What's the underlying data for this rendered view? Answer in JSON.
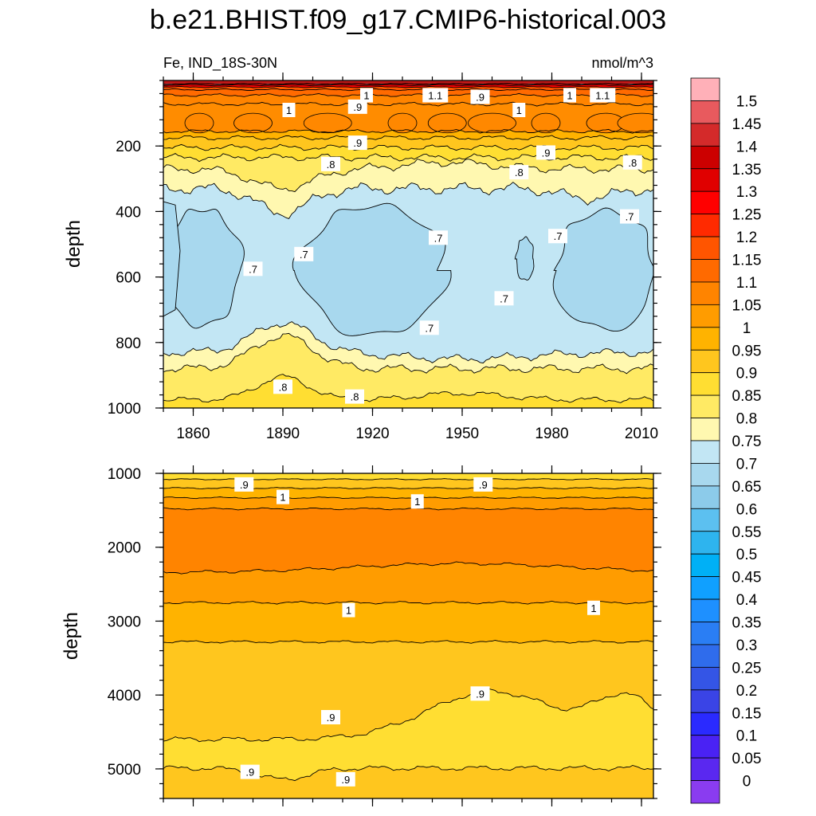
{
  "title": "b.e21.BHIST.f09_g17.CMIP6-historical.003",
  "left_subtitle": "Fe, IND_18S-30N",
  "right_subtitle": "nmol/m^3",
  "chart_data": [
    {
      "type": "heatmap",
      "panel": "upper",
      "ylabel": "depth",
      "xlim": [
        1850,
        2014
      ],
      "ylim": [
        0,
        1000
      ],
      "y_inverted": true,
      "x_ticks": [
        1860,
        1890,
        1920,
        1950,
        1980,
        2010
      ],
      "y_ticks": [
        200,
        400,
        600,
        800,
        1000
      ],
      "contour_labels": [
        {
          "text": "1",
          "x": 1892,
          "y": 90
        },
        {
          "text": ".9",
          "x": 1915,
          "y": 80
        },
        {
          "text": "1",
          "x": 1918,
          "y": 45
        },
        {
          "text": "1.1",
          "x": 1941,
          "y": 45
        },
        {
          "text": ".9",
          "x": 1956,
          "y": 50
        },
        {
          "text": "1",
          "x": 1969,
          "y": 90
        },
        {
          "text": "1",
          "x": 1986,
          "y": 45
        },
        {
          "text": "1.1",
          "x": 1997,
          "y": 45
        },
        {
          "text": ".9",
          "x": 1915,
          "y": 190
        },
        {
          "text": ".8",
          "x": 1906,
          "y": 255
        },
        {
          "text": ".9",
          "x": 1978,
          "y": 220
        },
        {
          "text": ".8",
          "x": 1969,
          "y": 280
        },
        {
          "text": ".8",
          "x": 2007,
          "y": 250
        },
        {
          "text": ".7",
          "x": 2006,
          "y": 415
        },
        {
          "text": ".7",
          "x": 1942,
          "y": 480
        },
        {
          "text": ".7",
          "x": 1982,
          "y": 475
        },
        {
          "text": ".7",
          "x": 1880,
          "y": 575
        },
        {
          "text": ".7",
          "x": 1897,
          "y": 530
        },
        {
          "text": ".7",
          "x": 1964,
          "y": 665
        },
        {
          "text": ".7",
          "x": 1939,
          "y": 755
        },
        {
          "text": ".8",
          "x": 1890,
          "y": 935
        },
        {
          "text": ".8",
          "x": 1914,
          "y": 965
        }
      ]
    },
    {
      "type": "heatmap",
      "panel": "lower",
      "ylabel": "depth",
      "xlim": [
        1850,
        2014
      ],
      "ylim": [
        1000,
        5400
      ],
      "y_inverted": true,
      "y_ticks": [
        1000,
        2000,
        3000,
        4000,
        5000
      ],
      "contour_labels": [
        {
          "text": ".9",
          "x": 1877,
          "y": 1150
        },
        {
          "text": ".9",
          "x": 1957,
          "y": 1150
        },
        {
          "text": "1",
          "x": 1890,
          "y": 1320
        },
        {
          "text": "1",
          "x": 1935,
          "y": 1380
        },
        {
          "text": "1",
          "x": 1912,
          "y": 2850
        },
        {
          "text": "1",
          "x": 1994,
          "y": 2820
        },
        {
          "text": ".9",
          "x": 1956,
          "y": 3980
        },
        {
          "text": ".9",
          "x": 1906,
          "y": 4300
        },
        {
          "text": ".9",
          "x": 1879,
          "y": 5040
        },
        {
          "text": ".9",
          "x": 1911,
          "y": 5140
        }
      ]
    }
  ],
  "colorbar": {
    "levels": [
      "1.5",
      "1.45",
      "1.4",
      "1.35",
      "1.3",
      "1.25",
      "1.2",
      "1.15",
      "1.1",
      "1.05",
      "1",
      "0.95",
      "0.9",
      "0.85",
      "0.8",
      "0.75",
      "0.7",
      "0.65",
      "0.6",
      "0.55",
      "0.5",
      "0.45",
      "0.4",
      "0.35",
      "0.3",
      "0.25",
      "0.2",
      "0.15",
      "0.1",
      "0.05",
      "0"
    ],
    "colors": [
      "#ffb0b8",
      "#e85a5e",
      "#d42a2a",
      "#cc0000",
      "#e00000",
      "#ff0000",
      "#ff2a00",
      "#ff5500",
      "#ff6a00",
      "#ff8400",
      "#ff9c00",
      "#ffb300",
      "#ffc61e",
      "#ffde32",
      "#ffea64",
      "#fff8b0",
      "#c2e6f4",
      "#a8d8ee",
      "#8ccbea",
      "#5cc0f0",
      "#2eb4ee",
      "#00b0f6",
      "#10a0ff",
      "#1e90ff",
      "#2a7ef4",
      "#2f6cec",
      "#3455e6",
      "#3a44e6",
      "#2a2aff",
      "#4a22f4",
      "#5a28f0",
      "#8a3cf0"
    ]
  }
}
